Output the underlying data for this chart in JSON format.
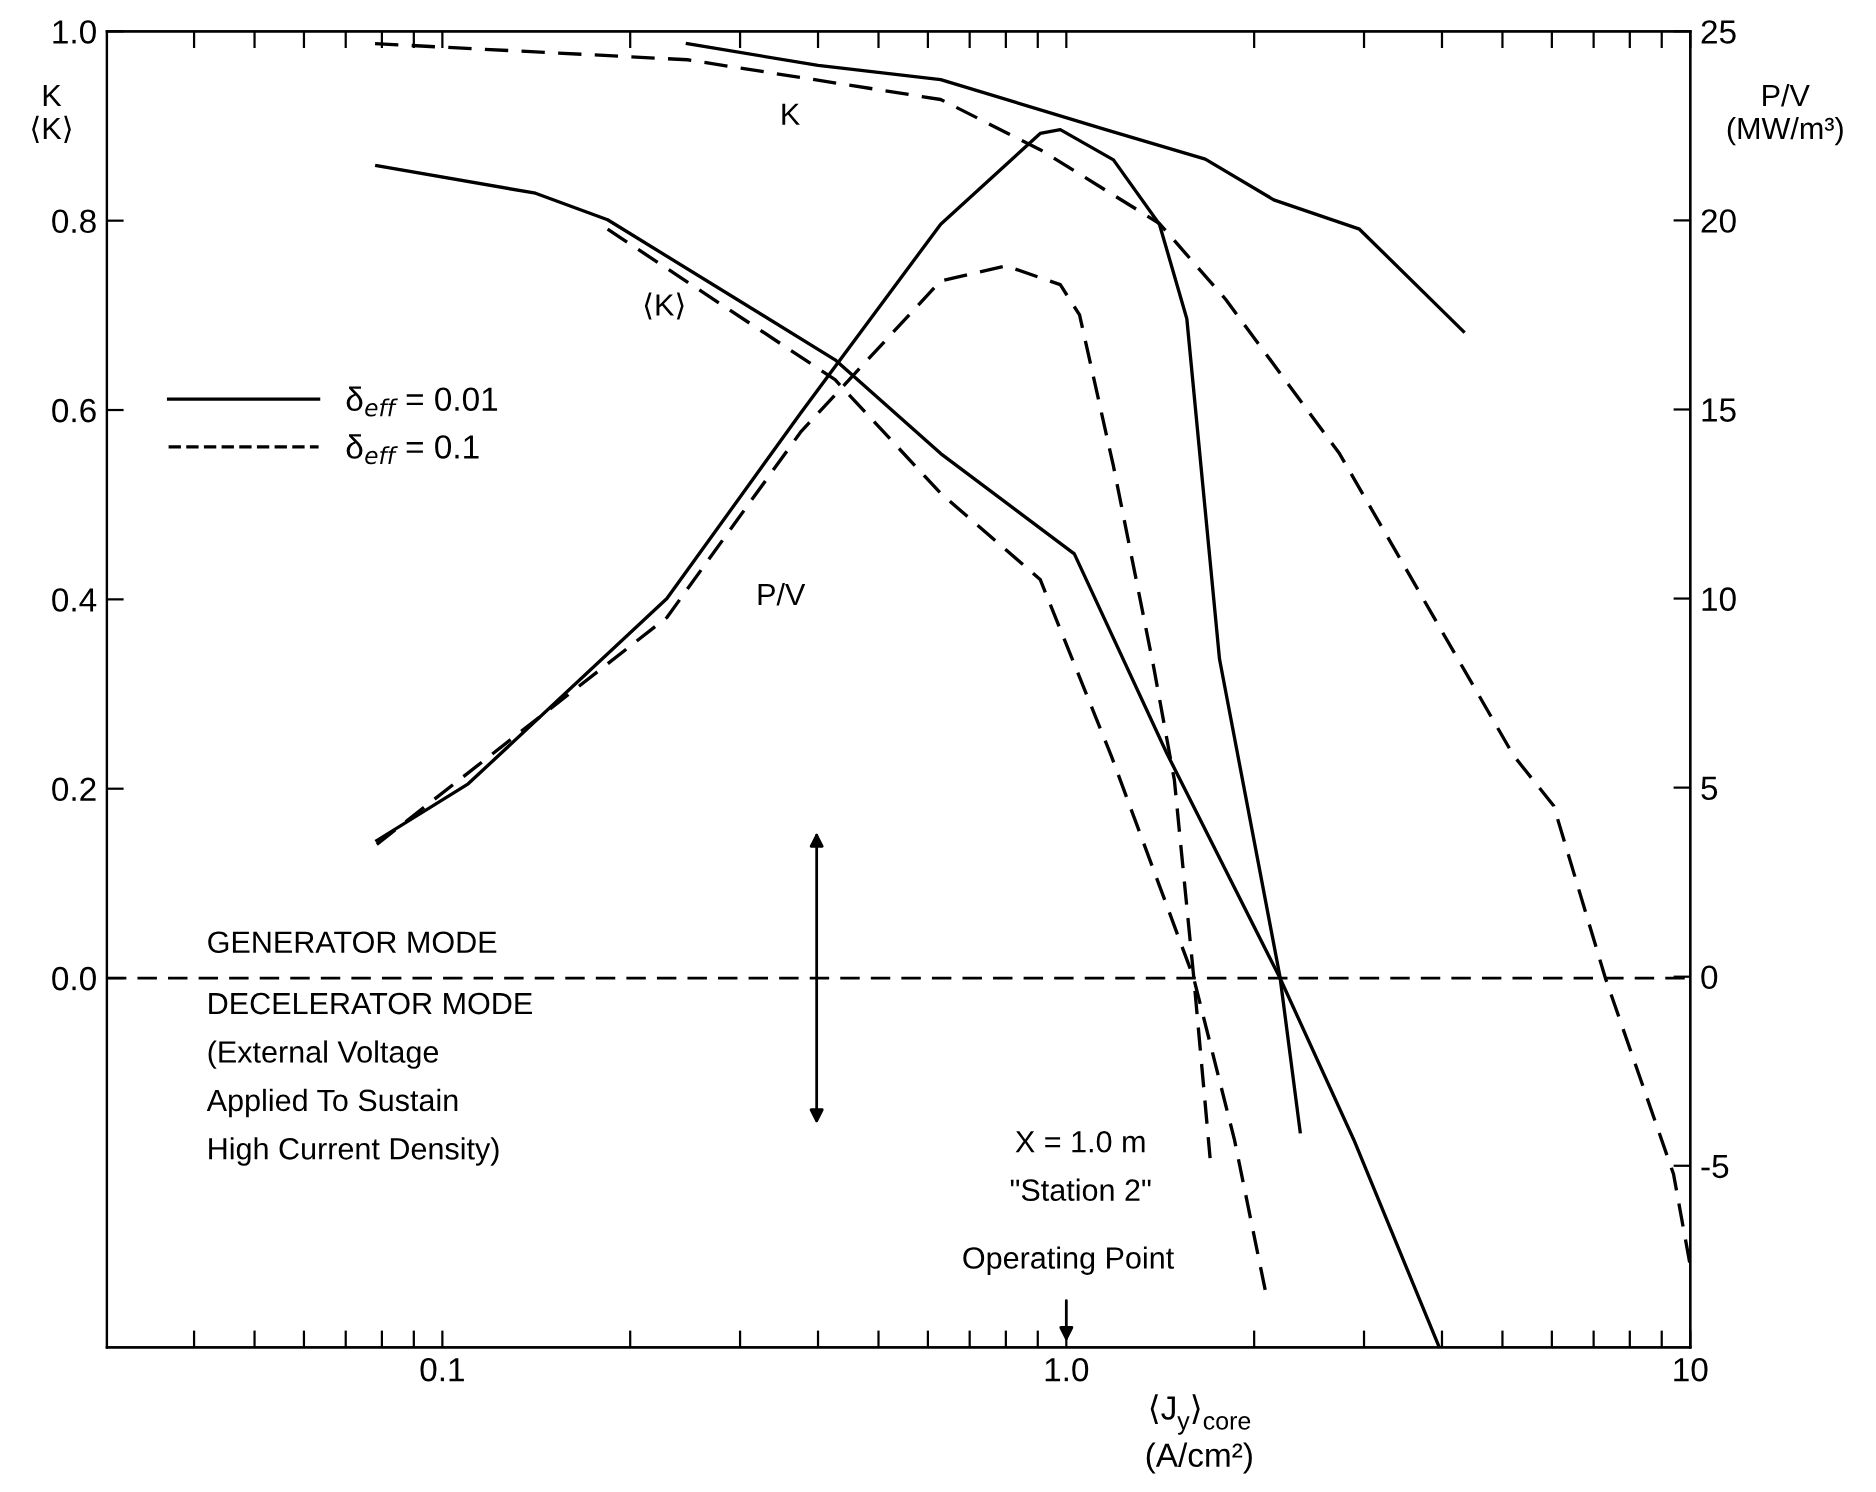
{
  "chart_data": {
    "type": "line",
    "xlabel": "⟨J$_{y}$⟩$_{core}$\n(A/cm²)",
    "ylabel": "K\n⟨K⟩",
    "y2label": "P/V\n(MW/m³)",
    "log": "x",
    "xlim": [
      0.029,
      10
    ],
    "ylim": [
      -0.39,
      1.0
    ],
    "y2lim": [
      -9.8,
      25
    ],
    "xticks": [
      {
        "value": 0.04,
        "label": null
      },
      {
        "value": 0.05,
        "label": null
      },
      {
        "value": 0.06,
        "label": null
      },
      {
        "value": 0.07,
        "label": null
      },
      {
        "value": 0.08,
        "label": null
      },
      {
        "value": 0.09,
        "label": null
      },
      {
        "value": 0.1,
        "label": "0.1"
      },
      {
        "value": 0.2,
        "label": null
      },
      {
        "value": 0.3,
        "label": null
      },
      {
        "value": 0.4,
        "label": null
      },
      {
        "value": 0.5,
        "label": null
      },
      {
        "value": 0.6,
        "label": null
      },
      {
        "value": 0.7,
        "label": null
      },
      {
        "value": 0.8,
        "label": null
      },
      {
        "value": 0.9,
        "label": null
      },
      {
        "value": 1.0,
        "label": "1.0"
      },
      {
        "value": 2,
        "label": null
      },
      {
        "value": 3,
        "label": null
      },
      {
        "value": 4,
        "label": null
      },
      {
        "value": 5,
        "label": null
      },
      {
        "value": 6,
        "label": null
      },
      {
        "value": 7,
        "label": null
      },
      {
        "value": 8,
        "label": null
      },
      {
        "value": 9,
        "label": null
      },
      10
    ],
    "yticks": [
      {
        "value": 0,
        "label": "0.0"
      },
      {
        "value": 0.2,
        "label": "0.2"
      },
      {
        "value": 0.4,
        "label": "0.4"
      },
      {
        "value": 0.6,
        "label": "0.6"
      },
      {
        "value": 0.8,
        "label": "0.8"
      },
      {
        "value": 1.0,
        "label": "1.0"
      }
    ],
    "y2ticks": [
      -5,
      0,
      5,
      10,
      15,
      20,
      25
    ],
    "legend": "left",
    "grid": false,
    "marker": "none",
    "series": [
      {
        "name": "δ$_{eff}$ = 0.01",
        "color": "#000000",
        "line_style": "solid",
        "x": [
          0.247,
          0.4,
          0.629,
          1.16,
          1.67,
          2.15,
          2.95,
          4.33
        ],
        "values": [
          0.987,
          0.964,
          0.949,
          0.896,
          0.865,
          0.822,
          0.791,
          0.683
        ]
      },
      {
        "name": "δ$_{eff}$ = 0.1",
        "color": "#000000",
        "line_style": "dashed",
        "x": [
          0.078,
          0.247,
          0.629,
          0.908,
          1.41,
          1.8,
          2.74,
          5.21,
          6.04,
          7.31,
          9.4,
          10
        ],
        "values": [
          0.987,
          0.97,
          0.928,
          0.875,
          0.797,
          0.717,
          0.554,
          0.235,
          0.182,
          0.0,
          -0.207,
          -0.304
        ]
      },
      {
        "color": "#000000",
        "line_style": "solid",
        "x": [
          0.0785,
          0.141,
          0.184,
          0.426,
          0.629,
          1.03,
          1.45,
          2.2,
          2.89,
          3.96
        ],
        "values": [
          0.858,
          0.829,
          0.801,
          0.653,
          0.554,
          0.448,
          0.237,
          0.0,
          -0.171,
          -0.39
        ]
      },
      {
        "color": "#000000",
        "line_style": "dashed",
        "x": [
          0.184,
          0.426,
          0.629,
          0.908,
          1.18,
          1.6,
          1.86,
          2.09
        ],
        "values": [
          0.791,
          0.632,
          0.512,
          0.421,
          0.235,
          0.0,
          -0.171,
          -0.334
        ]
      },
      {
        "color": "#000000",
        "line_style": "solid",
        "axis": "y2",
        "x": [
          0.0785,
          0.11,
          0.229,
          0.375,
          0.629,
          0.908,
          0.978,
          1.19,
          1.41,
          1.56,
          1.76,
          2.2,
          2.37
        ],
        "values": [
          3.6,
          5.1,
          10.0,
          14.9,
          19.9,
          22.3,
          22.4,
          21.6,
          19.9,
          17.4,
          8.4,
          0.0,
          -4.1
        ]
      },
      {
        "color": "#000000",
        "line_style": "dashed",
        "axis": "y2",
        "x": [
          0.0785,
          0.229,
          0.375,
          0.629,
          0.8,
          0.978,
          1.05,
          1.19,
          1.38,
          1.49,
          1.6,
          1.7
        ],
        "values": [
          3.5,
          9.5,
          14.4,
          18.4,
          18.8,
          18.3,
          17.5,
          13.5,
          8.2,
          5.2,
          0.0,
          -4.8
        ]
      }
    ],
    "ref_lines": [
      {
        "axis": "y",
        "value": 0,
        "line_style": "dashed",
        "color": "#000000"
      }
    ],
    "annotations": [
      "GENERATOR MODE",
      "DECELERATOR MODE\n(External Voltage\nApplied To Sustain\nHigh Current Density)",
      "X = 1.0 m\n\"Station 2\"",
      "Operating Point",
      "K",
      "⟨K⟩",
      "P/V"
    ]
  }
}
